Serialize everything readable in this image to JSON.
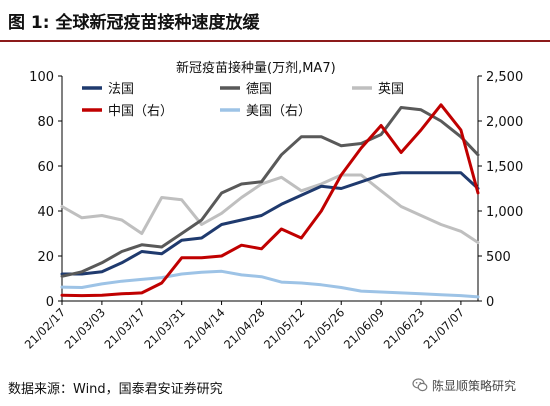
{
  "header": {
    "title": "图 1: 全球新冠疫苗接种速度放缓"
  },
  "footer": {
    "source": "数据来源：Wind，国泰君安证券研究"
  },
  "watermark": {
    "text": "陈显顺策略研究",
    "icon": "wechat-icon"
  },
  "chart_data": {
    "type": "line",
    "title": "新冠疫苗接种量(万剂,MA7)",
    "x_tick_labels": [
      "21/02/17",
      "21/03/03",
      "21/03/17",
      "21/03/31",
      "21/04/14",
      "21/04/28",
      "21/05/12",
      "21/05/26",
      "21/06/09",
      "21/06/23",
      "21/07/07"
    ],
    "x_range": [
      "21/02/17",
      "21/07/13"
    ],
    "y_left": {
      "range": [
        0,
        100
      ],
      "ticks": [
        "0",
        "20",
        "40",
        "60",
        "80",
        "100"
      ]
    },
    "y_right": {
      "range": [
        0,
        2500
      ],
      "ticks": [
        "0",
        "500",
        "1,000",
        "1,500",
        "2,000",
        "2,500"
      ]
    },
    "grid": false,
    "legend_position": "top",
    "series": [
      {
        "name": "法国",
        "axis": "left",
        "color": "#1f3a6e",
        "points": [
          [
            "21/02/17",
            12
          ],
          [
            "21/02/24",
            12
          ],
          [
            "21/03/03",
            13
          ],
          [
            "21/03/10",
            17
          ],
          [
            "21/03/17",
            22
          ],
          [
            "21/03/24",
            21
          ],
          [
            "21/03/31",
            27
          ],
          [
            "21/04/07",
            28
          ],
          [
            "21/04/14",
            34
          ],
          [
            "21/04/21",
            36
          ],
          [
            "21/04/28",
            38
          ],
          [
            "21/05/05",
            43
          ],
          [
            "21/05/12",
            47
          ],
          [
            "21/05/19",
            51
          ],
          [
            "21/05/26",
            50
          ],
          [
            "21/06/02",
            53
          ],
          [
            "21/06/09",
            56
          ],
          [
            "21/06/16",
            57
          ],
          [
            "21/06/23",
            57
          ],
          [
            "21/06/30",
            57
          ],
          [
            "21/07/07",
            57
          ],
          [
            "21/07/13",
            50
          ]
        ]
      },
      {
        "name": "德国",
        "axis": "left",
        "color": "#595959",
        "points": [
          [
            "21/02/17",
            11
          ],
          [
            "21/02/24",
            13
          ],
          [
            "21/03/03",
            17
          ],
          [
            "21/03/10",
            22
          ],
          [
            "21/03/17",
            25
          ],
          [
            "21/03/24",
            24
          ],
          [
            "21/03/31",
            30
          ],
          [
            "21/04/07",
            36
          ],
          [
            "21/04/14",
            48
          ],
          [
            "21/04/21",
            52
          ],
          [
            "21/04/28",
            53
          ],
          [
            "21/05/05",
            65
          ],
          [
            "21/05/12",
            73
          ],
          [
            "21/05/19",
            73
          ],
          [
            "21/05/26",
            69
          ],
          [
            "21/06/02",
            70
          ],
          [
            "21/06/09",
            74
          ],
          [
            "21/06/16",
            86
          ],
          [
            "21/06/23",
            85
          ],
          [
            "21/06/30",
            80
          ],
          [
            "21/07/07",
            73
          ],
          [
            "21/07/13",
            65
          ]
        ]
      },
      {
        "name": "英国",
        "axis": "left",
        "color": "#bfbfbf",
        "points": [
          [
            "21/02/17",
            42
          ],
          [
            "21/02/24",
            37
          ],
          [
            "21/03/03",
            38
          ],
          [
            "21/03/10",
            36
          ],
          [
            "21/03/17",
            30
          ],
          [
            "21/03/24",
            46
          ],
          [
            "21/03/31",
            45
          ],
          [
            "21/04/07",
            34
          ],
          [
            "21/04/14",
            39
          ],
          [
            "21/04/21",
            46
          ],
          [
            "21/04/28",
            52
          ],
          [
            "21/05/05",
            55
          ],
          [
            "21/05/12",
            49
          ],
          [
            "21/05/19",
            52
          ],
          [
            "21/05/26",
            56
          ],
          [
            "21/06/02",
            56
          ],
          [
            "21/06/09",
            49
          ],
          [
            "21/06/16",
            42
          ],
          [
            "21/06/23",
            38
          ],
          [
            "21/06/30",
            34
          ],
          [
            "21/07/07",
            31
          ],
          [
            "21/07/13",
            26
          ]
        ]
      },
      {
        "name": "中国（右）",
        "axis": "right",
        "color": "#c00000",
        "points": [
          [
            "21/02/17",
            65
          ],
          [
            "21/02/24",
            60
          ],
          [
            "21/03/03",
            65
          ],
          [
            "21/03/10",
            80
          ],
          [
            "21/03/17",
            90
          ],
          [
            "21/03/24",
            200
          ],
          [
            "21/03/31",
            480
          ],
          [
            "21/04/07",
            480
          ],
          [
            "21/04/14",
            500
          ],
          [
            "21/04/21",
            620
          ],
          [
            "21/04/28",
            580
          ],
          [
            "21/05/05",
            800
          ],
          [
            "21/05/12",
            700
          ],
          [
            "21/05/19",
            1000
          ],
          [
            "21/05/26",
            1400
          ],
          [
            "21/06/02",
            1700
          ],
          [
            "21/06/09",
            1950
          ],
          [
            "21/06/16",
            1650
          ],
          [
            "21/06/23",
            1900
          ],
          [
            "21/06/30",
            2180
          ],
          [
            "21/07/07",
            1900
          ],
          [
            "21/07/13",
            1200
          ]
        ]
      },
      {
        "name": "美国（右）",
        "axis": "right",
        "color": "#9dc3e6",
        "points": [
          [
            "21/02/17",
            155
          ],
          [
            "21/02/24",
            150
          ],
          [
            "21/03/03",
            190
          ],
          [
            "21/03/10",
            220
          ],
          [
            "21/03/17",
            240
          ],
          [
            "21/03/24",
            260
          ],
          [
            "21/03/31",
            300
          ],
          [
            "21/04/07",
            320
          ],
          [
            "21/04/14",
            330
          ],
          [
            "21/04/21",
            290
          ],
          [
            "21/04/28",
            270
          ],
          [
            "21/05/05",
            210
          ],
          [
            "21/05/12",
            200
          ],
          [
            "21/05/19",
            180
          ],
          [
            "21/05/26",
            150
          ],
          [
            "21/06/02",
            110
          ],
          [
            "21/06/09",
            100
          ],
          [
            "21/06/16",
            90
          ],
          [
            "21/06/23",
            80
          ],
          [
            "21/06/30",
            70
          ],
          [
            "21/07/07",
            60
          ],
          [
            "21/07/13",
            45
          ]
        ]
      }
    ]
  }
}
